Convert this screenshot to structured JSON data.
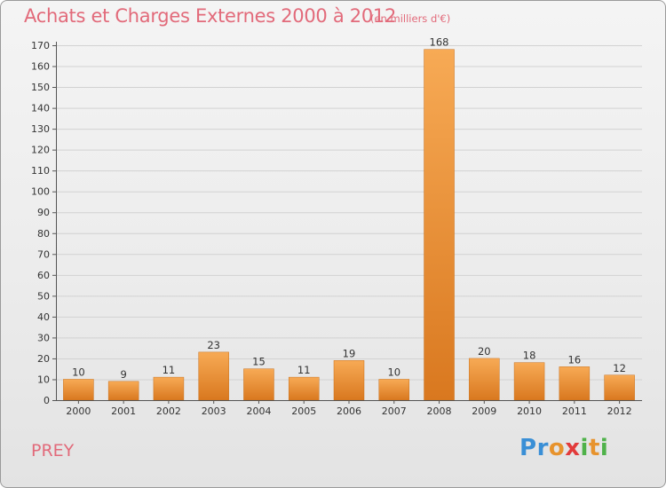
{
  "header": {
    "title": "Achats et Charges Externes 2000 à 2012",
    "subtitle": "(en milliers d'€)"
  },
  "footer": {
    "commune": "PREY",
    "logo_text": "Proxiti"
  },
  "colors": {
    "title": "#e26a7a",
    "bar_light": "#f6a650",
    "bar_dark": "#d97a20",
    "grid": "#d0d0d0",
    "axis": "#555555"
  },
  "chart_data": {
    "type": "bar",
    "title": "Achats et Charges Externes 2000 à 2012",
    "subtitle": "(en milliers d'€)",
    "categories": [
      "2000",
      "2001",
      "2002",
      "2003",
      "2004",
      "2005",
      "2006",
      "2007",
      "2008",
      "2009",
      "2010",
      "2011",
      "2012"
    ],
    "values": [
      10,
      9,
      11,
      23,
      15,
      11,
      19,
      10,
      168,
      20,
      18,
      16,
      12
    ],
    "ylim": [
      0,
      170
    ],
    "yticks": [
      0,
      10,
      20,
      30,
      40,
      50,
      60,
      70,
      80,
      90,
      100,
      110,
      120,
      130,
      140,
      150,
      160,
      170
    ],
    "grid": true,
    "data_labels": true,
    "legend": "none"
  }
}
